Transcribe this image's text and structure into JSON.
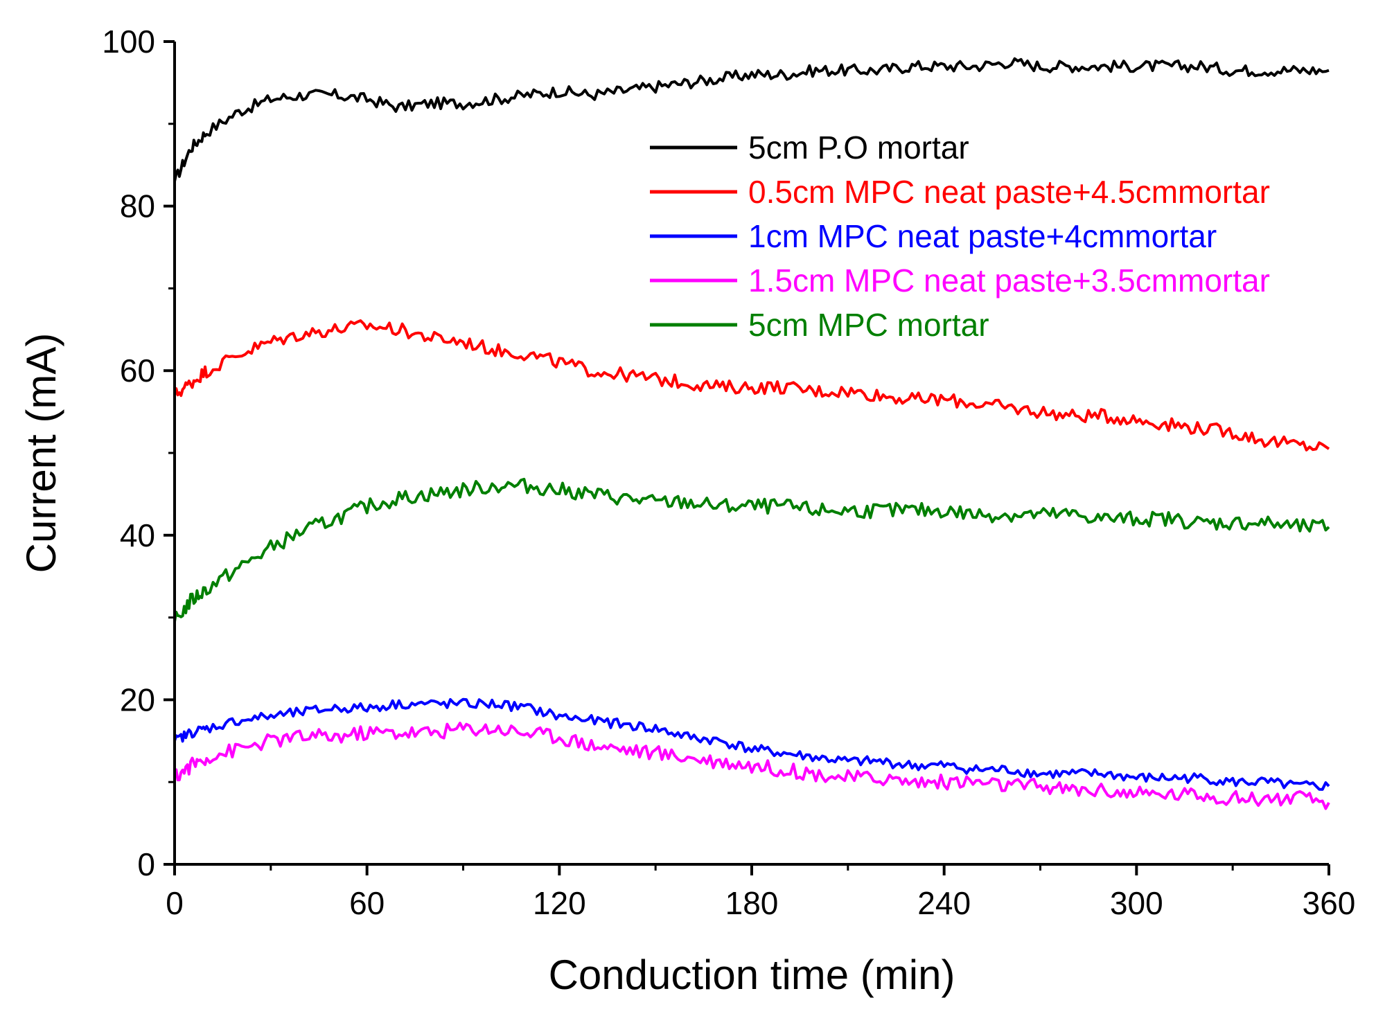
{
  "chart_data": {
    "type": "line",
    "title": "",
    "xlabel": "Conduction time (min)",
    "ylabel": "Current (mA)",
    "xlim": [
      0,
      360
    ],
    "ylim": [
      0,
      100
    ],
    "xticks": [
      0,
      60,
      120,
      180,
      240,
      300,
      360
    ],
    "xtick_labels": [
      "0",
      "60",
      "120",
      "180",
      "240",
      "300",
      "360"
    ],
    "yticks": [
      0,
      20,
      40,
      60,
      80,
      100
    ],
    "ytick_labels": [
      "0",
      "20",
      "40",
      "60",
      "80",
      "100"
    ],
    "grid": false,
    "legend_position": "top-right",
    "series": [
      {
        "name": "5cm P.O mortar",
        "color": "#000000",
        "x": [
          0,
          5,
          10,
          20,
          30,
          40,
          50,
          60,
          70,
          80,
          90,
          100,
          110,
          120,
          130,
          140,
          150,
          160,
          170,
          180,
          190,
          200,
          210,
          220,
          230,
          240,
          250,
          260,
          270,
          280,
          290,
          300,
          310,
          320,
          330,
          340,
          350,
          360
        ],
        "y": [
          83,
          87,
          89,
          91.5,
          93,
          93.5,
          93.5,
          93,
          92,
          92.5,
          92.5,
          93,
          93.5,
          94,
          93.5,
          94,
          94.5,
          95,
          95.5,
          96,
          96,
          96.5,
          96.5,
          96.5,
          97,
          97,
          97,
          97.5,
          97,
          97,
          97,
          97,
          97,
          97,
          96.5,
          96.5,
          96.5,
          96.5
        ]
      },
      {
        "name": "0.5cm MPC neat paste+4.5cmmortar",
        "color": "#ff0000",
        "x": [
          0,
          5,
          10,
          20,
          30,
          40,
          50,
          60,
          70,
          80,
          90,
          100,
          110,
          120,
          130,
          140,
          150,
          160,
          170,
          180,
          190,
          200,
          210,
          220,
          230,
          240,
          250,
          260,
          270,
          280,
          290,
          300,
          310,
          320,
          330,
          340,
          350,
          360
        ],
        "y": [
          57,
          58.5,
          60,
          62,
          63.5,
          64.5,
          65,
          65.5,
          65,
          64,
          63.5,
          62.5,
          62,
          61,
          60,
          59.5,
          59,
          58.5,
          58,
          58,
          58,
          57.5,
          57.5,
          57,
          56.5,
          56.5,
          56,
          55.5,
          55,
          54.5,
          54.5,
          54,
          53.5,
          53,
          52.5,
          51.5,
          51,
          50.5
        ]
      },
      {
        "name": "1cm MPC neat paste+4cmmortar",
        "color": "#0000ff",
        "x": [
          0,
          5,
          10,
          20,
          30,
          40,
          50,
          60,
          70,
          80,
          90,
          100,
          110,
          120,
          130,
          140,
          150,
          160,
          170,
          180,
          190,
          200,
          210,
          220,
          230,
          240,
          250,
          260,
          270,
          280,
          290,
          300,
          310,
          320,
          330,
          340,
          350,
          360
        ],
        "y": [
          15,
          16,
          16.5,
          17.5,
          18,
          18.5,
          19,
          19,
          19.5,
          19.5,
          19.5,
          19.5,
          19,
          18,
          17.5,
          17,
          16.5,
          15.5,
          15,
          14,
          13.5,
          13,
          12.5,
          12.5,
          12,
          12,
          11.5,
          11.5,
          11,
          11,
          11,
          10.5,
          10.5,
          10.5,
          10,
          10,
          9.5,
          9.5
        ]
      },
      {
        "name": "1.5cm MPC neat paste+3.5cmmortar",
        "color": "#ff00ff",
        "x": [
          0,
          5,
          10,
          20,
          30,
          40,
          50,
          60,
          70,
          80,
          90,
          100,
          110,
          120,
          130,
          140,
          150,
          160,
          170,
          180,
          190,
          200,
          210,
          220,
          230,
          240,
          250,
          260,
          270,
          280,
          290,
          300,
          310,
          320,
          330,
          340,
          350,
          360
        ],
        "y": [
          10.5,
          12,
          13,
          14,
          15,
          15.5,
          15.5,
          16,
          16,
          16,
          16.5,
          16.5,
          16,
          15.5,
          14.5,
          14,
          13.5,
          13,
          12.5,
          12,
          11.5,
          11,
          10.5,
          10.5,
          10,
          10,
          10,
          9.5,
          9.5,
          9,
          9,
          8.5,
          8.5,
          8.5,
          8,
          8,
          8,
          7.5
        ]
      },
      {
        "name": "5cm MPC mortar",
        "color": "#007f00",
        "x": [
          0,
          5,
          10,
          20,
          30,
          40,
          50,
          60,
          70,
          80,
          90,
          100,
          110,
          120,
          130,
          140,
          150,
          160,
          170,
          180,
          190,
          200,
          210,
          220,
          230,
          240,
          250,
          260,
          270,
          280,
          290,
          300,
          310,
          320,
          330,
          340,
          350,
          360
        ],
        "y": [
          29.5,
          32,
          33.5,
          36,
          38.5,
          40.5,
          42,
          43.5,
          44.5,
          45,
          45.5,
          46,
          46,
          45.5,
          45,
          44.5,
          44,
          44,
          43.5,
          43.5,
          43.5,
          43,
          43,
          43,
          43,
          43,
          42.5,
          42.5,
          42.5,
          42.5,
          42,
          42,
          42,
          41.5,
          41.5,
          41.5,
          41,
          41
        ]
      }
    ]
  }
}
